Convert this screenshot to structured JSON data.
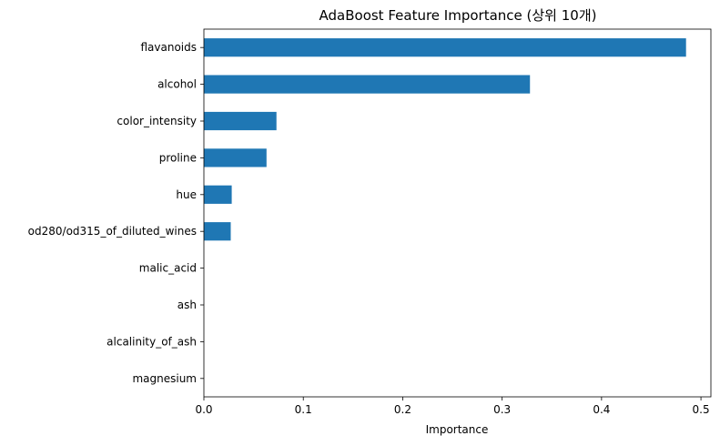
{
  "chart_data": {
    "type": "bar",
    "orientation": "horizontal",
    "title": "AdaBoost Feature Importance (상위 10개)",
    "xlabel": "Importance",
    "ylabel": "",
    "xlim": [
      0,
      0.51
    ],
    "xticks": [
      "0.0",
      "0.1",
      "0.2",
      "0.3",
      "0.4",
      "0.5"
    ],
    "categories": [
      "flavanoids",
      "alcohol",
      "color_intensity",
      "proline",
      "hue",
      "od280/od315_of_diluted_wines",
      "malic_acid",
      "ash",
      "alcalinity_of_ash",
      "magnesium"
    ],
    "values": [
      0.485,
      0.328,
      0.073,
      0.063,
      0.028,
      0.027,
      0,
      0,
      0,
      0
    ],
    "bar_color": "#1f77b4",
    "grid": false,
    "legend": "none"
  }
}
